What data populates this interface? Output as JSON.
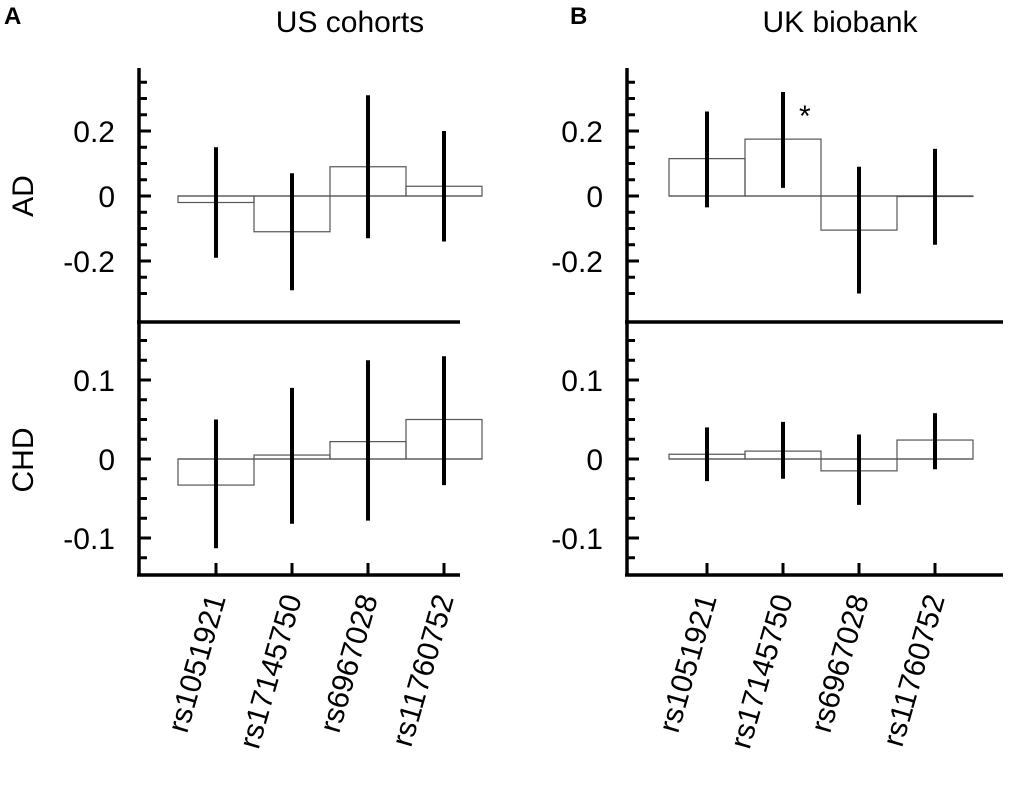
{
  "figure": {
    "panels": [
      {
        "letter": "A",
        "title": "US cohorts"
      },
      {
        "letter": "B",
        "title": "UK biobank"
      }
    ],
    "rows": [
      {
        "label": "AD"
      },
      {
        "label": "CHD"
      }
    ]
  },
  "chart_data": [
    {
      "type": "bar",
      "panel": "A",
      "title": "US cohorts",
      "ylabel": "AD",
      "categories": [
        "rs1051921",
        "rs17145750",
        "rs6967028",
        "rs11760752"
      ],
      "values": [
        -0.02,
        -0.11,
        0.09,
        0.03
      ],
      "ci_low": [
        -0.19,
        -0.29,
        -0.13,
        -0.14
      ],
      "ci_high": [
        0.15,
        0.07,
        0.31,
        0.2
      ],
      "yticks": [
        "0.2",
        "0",
        "-0.2"
      ],
      "ylim": [
        -0.32,
        0.38
      ],
      "annotations": []
    },
    {
      "type": "bar",
      "panel": "B",
      "title": "UK biobank",
      "ylabel": "AD",
      "categories": [
        "rs1051921",
        "rs17145750",
        "rs6967028",
        "rs11760752"
      ],
      "values": [
        0.115,
        0.175,
        -0.105,
        0.0
      ],
      "ci_low": [
        -0.035,
        0.025,
        -0.3,
        -0.15
      ],
      "ci_high": [
        0.26,
        0.32,
        0.09,
        0.145
      ],
      "yticks": [
        "0.2",
        "0",
        "-0.2"
      ],
      "ylim": [
        -0.32,
        0.38
      ],
      "annotations": [
        {
          "category": "rs17145750",
          "text": "*"
        }
      ]
    },
    {
      "type": "bar",
      "panel": "A",
      "ylabel": "CHD",
      "categories": [
        "rs1051921",
        "rs17145750",
        "rs6967028",
        "rs11760752"
      ],
      "values": [
        -0.033,
        0.005,
        0.022,
        0.05
      ],
      "ci_low": [
        -0.113,
        -0.082,
        -0.078,
        -0.033
      ],
      "ci_high": [
        0.05,
        0.09,
        0.125,
        0.13
      ],
      "yticks": [
        "0.1",
        "0",
        "-0.1"
      ],
      "ylim": [
        -0.145,
        0.16
      ],
      "annotations": []
    },
    {
      "type": "bar",
      "panel": "B",
      "ylabel": "CHD",
      "categories": [
        "rs1051921",
        "rs17145750",
        "rs6967028",
        "rs11760752"
      ],
      "values": [
        0.006,
        0.01,
        -0.015,
        0.024
      ],
      "ci_low": [
        -0.028,
        -0.025,
        -0.058,
        -0.013
      ],
      "ci_high": [
        0.04,
        0.047,
        0.031,
        0.058
      ],
      "yticks": [
        "0.1",
        "0",
        "-0.1"
      ],
      "ylim": [
        -0.145,
        0.16
      ],
      "annotations": []
    }
  ]
}
